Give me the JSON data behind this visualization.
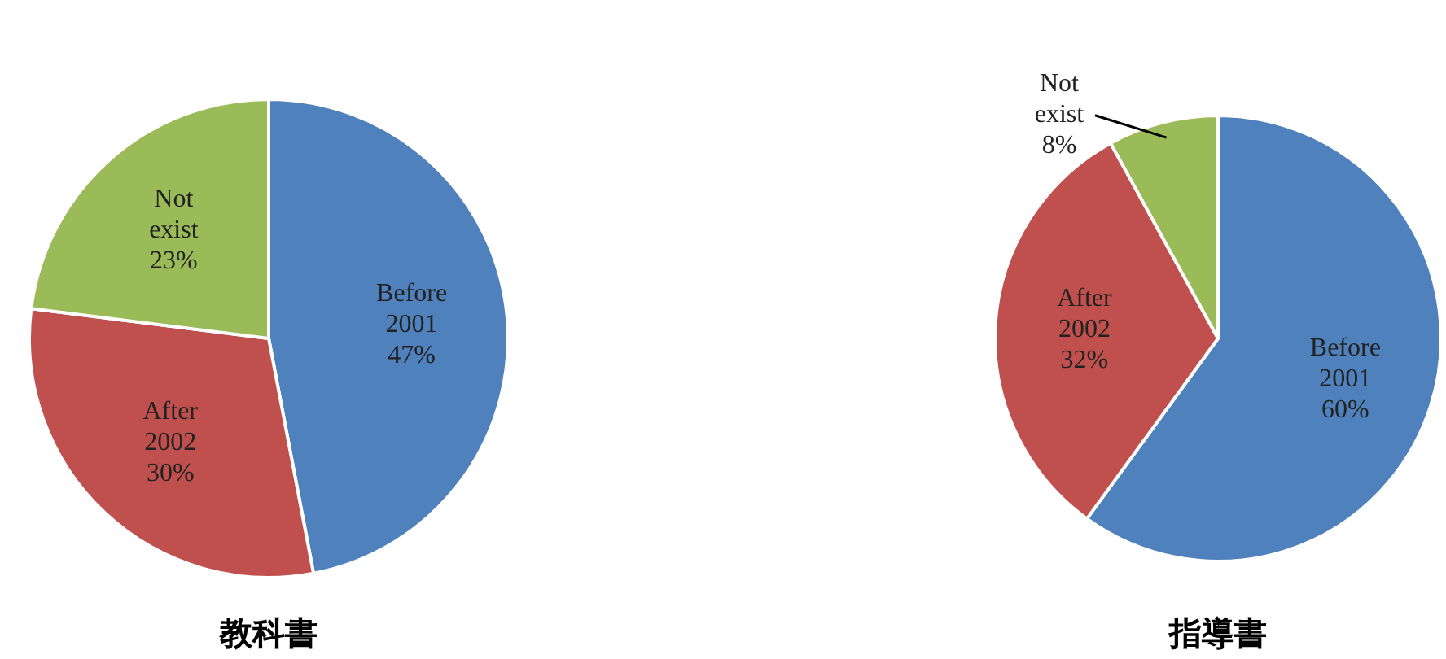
{
  "chart_data": [
    {
      "type": "pie",
      "title": "教科書",
      "categories": [
        "Before 2001",
        "After 2002",
        "Not exist"
      ],
      "values": [
        47,
        30,
        23
      ],
      "value_labels": [
        "47%",
        "30%",
        "23%"
      ],
      "colors": [
        "#4f81bd",
        "#c0504d",
        "#9bbb59"
      ],
      "legend": false
    },
    {
      "type": "pie",
      "title": "指導書",
      "categories": [
        "Before 2001",
        "After 2002",
        "Not exist"
      ],
      "values": [
        60,
        32,
        8
      ],
      "value_labels": [
        "60%",
        "32%",
        "8%"
      ],
      "colors": [
        "#4f81bd",
        "#c0504d",
        "#9bbb59"
      ],
      "legend": false
    }
  ]
}
